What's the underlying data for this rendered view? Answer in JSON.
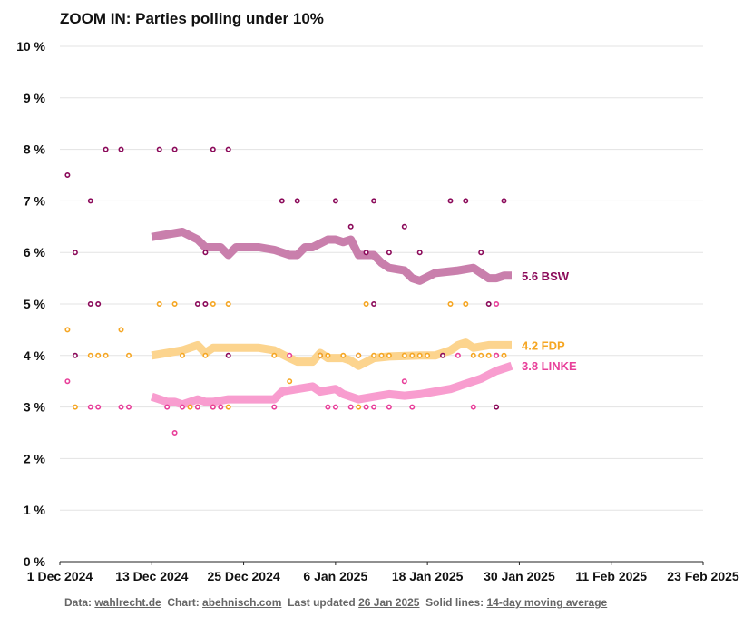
{
  "chart_data": {
    "type": "scatter",
    "title": "ZOOM IN: Parties polling under 10%",
    "xlabel": "",
    "ylabel": "",
    "xlim": [
      "2024-12-01",
      "2025-02-23"
    ],
    "ylim": [
      0,
      10
    ],
    "x_ticks": [
      "1 Dec 2024",
      "13 Dec 2024",
      "25 Dec 2024",
      "6 Jan 2025",
      "18 Jan 2025",
      "30 Jan 2025",
      "11 Feb 2025",
      "23 Feb 2025"
    ],
    "y_ticks": [
      "0 %",
      "1 %",
      "2 %",
      "3 %",
      "4 %",
      "5 %",
      "6 %",
      "7 %",
      "8 %",
      "9 %",
      "10 %"
    ],
    "grid": true,
    "series": [
      {
        "name": "BSW",
        "color": "#8b0a5a",
        "line_color": "#c97fac",
        "end_label": "5.6 BSW",
        "points": [
          [
            "2024-12-02",
            7.5
          ],
          [
            "2024-12-03",
            6.0
          ],
          [
            "2024-12-03",
            4.0
          ],
          [
            "2024-12-05",
            7.0
          ],
          [
            "2024-12-05",
            5.0
          ],
          [
            "2024-12-06",
            5.0
          ],
          [
            "2024-12-07",
            8.0
          ],
          [
            "2024-12-09",
            8.0
          ],
          [
            "2024-12-14",
            8.0
          ],
          [
            "2024-12-16",
            8.0
          ],
          [
            "2024-12-19",
            5.0
          ],
          [
            "2024-12-20",
            5.0
          ],
          [
            "2024-12-20",
            6.0
          ],
          [
            "2024-12-21",
            8.0
          ],
          [
            "2024-12-23",
            8.0
          ],
          [
            "2024-12-23",
            4.0
          ],
          [
            "2024-12-30",
            7.0
          ],
          [
            "2025-01-01",
            7.0
          ],
          [
            "2025-01-04",
            4.0
          ],
          [
            "2025-01-06",
            7.0
          ],
          [
            "2025-01-08",
            6.5
          ],
          [
            "2025-01-09",
            4.0
          ],
          [
            "2025-01-10",
            6.0
          ],
          [
            "2025-01-11",
            7.0
          ],
          [
            "2025-01-11",
            5.0
          ],
          [
            "2025-01-13",
            6.0
          ],
          [
            "2025-01-15",
            6.5
          ],
          [
            "2025-01-17",
            6.0
          ],
          [
            "2025-01-20",
            4.0
          ],
          [
            "2025-01-21",
            7.0
          ],
          [
            "2025-01-23",
            7.0
          ],
          [
            "2025-01-25",
            6.0
          ],
          [
            "2025-01-26",
            5.0
          ],
          [
            "2025-01-27",
            3.0
          ],
          [
            "2025-01-28",
            7.0
          ]
        ],
        "trend": [
          [
            "2024-12-13",
            6.3
          ],
          [
            "2024-12-15",
            6.35
          ],
          [
            "2024-12-17",
            6.4
          ],
          [
            "2024-12-19",
            6.25
          ],
          [
            "2024-12-20",
            6.1
          ],
          [
            "2024-12-22",
            6.1
          ],
          [
            "2024-12-23",
            5.95
          ],
          [
            "2024-12-24",
            6.1
          ],
          [
            "2024-12-27",
            6.1
          ],
          [
            "2024-12-29",
            6.05
          ],
          [
            "2024-12-31",
            5.95
          ],
          [
            "2025-01-01",
            5.95
          ],
          [
            "2025-01-02",
            6.1
          ],
          [
            "2025-01-03",
            6.1
          ],
          [
            "2025-01-05",
            6.25
          ],
          [
            "2025-01-06",
            6.25
          ],
          [
            "2025-01-07",
            6.2
          ],
          [
            "2025-01-08",
            6.25
          ],
          [
            "2025-01-09",
            5.95
          ],
          [
            "2025-01-11",
            5.95
          ],
          [
            "2025-01-12",
            5.8
          ],
          [
            "2025-01-13",
            5.7
          ],
          [
            "2025-01-15",
            5.65
          ],
          [
            "2025-01-16",
            5.5
          ],
          [
            "2025-01-17",
            5.45
          ],
          [
            "2025-01-19",
            5.6
          ],
          [
            "2025-01-22",
            5.65
          ],
          [
            "2025-01-24",
            5.7
          ],
          [
            "2025-01-25",
            5.6
          ],
          [
            "2025-01-26",
            5.5
          ],
          [
            "2025-01-27",
            5.5
          ],
          [
            "2025-01-28",
            5.55
          ],
          [
            "2025-01-29",
            5.55
          ]
        ]
      },
      {
        "name": "FDP",
        "color": "#f5a623",
        "line_color": "#fcd48e",
        "end_label": "4.2 FDP",
        "points": [
          [
            "2024-12-02",
            4.5
          ],
          [
            "2024-12-03",
            3.0
          ],
          [
            "2024-12-05",
            4.0
          ],
          [
            "2024-12-06",
            4.0
          ],
          [
            "2024-12-07",
            4.0
          ],
          [
            "2024-12-09",
            4.5
          ],
          [
            "2024-12-10",
            4.0
          ],
          [
            "2024-12-14",
            5.0
          ],
          [
            "2024-12-16",
            5.0
          ],
          [
            "2024-12-17",
            4.0
          ],
          [
            "2024-12-18",
            3.0
          ],
          [
            "2024-12-19",
            3.0
          ],
          [
            "2024-12-20",
            4.0
          ],
          [
            "2024-12-21",
            5.0
          ],
          [
            "2024-12-21",
            3.0
          ],
          [
            "2024-12-23",
            5.0
          ],
          [
            "2024-12-23",
            3.0
          ],
          [
            "2024-12-29",
            4.0
          ],
          [
            "2024-12-31",
            3.5
          ],
          [
            "2025-01-04",
            4.0
          ],
          [
            "2025-01-05",
            4.0
          ],
          [
            "2025-01-07",
            4.0
          ],
          [
            "2025-01-09",
            4.0
          ],
          [
            "2025-01-09",
            3.0
          ],
          [
            "2025-01-10",
            5.0
          ],
          [
            "2025-01-11",
            4.0
          ],
          [
            "2025-01-12",
            4.0
          ],
          [
            "2025-01-13",
            4.0
          ],
          [
            "2025-01-15",
            4.0
          ],
          [
            "2025-01-16",
            4.0
          ],
          [
            "2025-01-17",
            4.0
          ],
          [
            "2025-01-18",
            4.0
          ],
          [
            "2025-01-21",
            5.0
          ],
          [
            "2025-01-23",
            5.0
          ],
          [
            "2025-01-24",
            4.0
          ],
          [
            "2025-01-25",
            4.0
          ],
          [
            "2025-01-26",
            4.0
          ],
          [
            "2025-01-27",
            4.0
          ],
          [
            "2025-01-28",
            4.0
          ]
        ],
        "trend": [
          [
            "2024-12-13",
            4.0
          ],
          [
            "2024-12-15",
            4.05
          ],
          [
            "2024-12-17",
            4.1
          ],
          [
            "2024-12-19",
            4.2
          ],
          [
            "2024-12-20",
            4.05
          ],
          [
            "2024-12-21",
            4.15
          ],
          [
            "2024-12-23",
            4.15
          ],
          [
            "2024-12-27",
            4.15
          ],
          [
            "2024-12-29",
            4.1
          ],
          [
            "2024-12-31",
            3.95
          ],
          [
            "2025-01-01",
            3.88
          ],
          [
            "2025-01-03",
            3.88
          ],
          [
            "2025-01-04",
            4.05
          ],
          [
            "2025-01-05",
            3.95
          ],
          [
            "2025-01-07",
            3.95
          ],
          [
            "2025-01-08",
            3.9
          ],
          [
            "2025-01-09",
            3.8
          ],
          [
            "2025-01-11",
            3.95
          ],
          [
            "2025-01-13",
            3.98
          ],
          [
            "2025-01-17",
            4.0
          ],
          [
            "2025-01-19",
            4.0
          ],
          [
            "2025-01-21",
            4.1
          ],
          [
            "2025-01-22",
            4.2
          ],
          [
            "2025-01-23",
            4.25
          ],
          [
            "2025-01-24",
            4.15
          ],
          [
            "2025-01-26",
            4.2
          ],
          [
            "2025-01-29",
            4.2
          ]
        ]
      },
      {
        "name": "LINKE",
        "color": "#e8409a",
        "line_color": "#f89dcf",
        "end_label": "3.8 LINKE",
        "points": [
          [
            "2024-12-02",
            3.5
          ],
          [
            "2024-12-05",
            3.0
          ],
          [
            "2024-12-06",
            3.0
          ],
          [
            "2024-12-09",
            3.0
          ],
          [
            "2024-12-10",
            3.0
          ],
          [
            "2024-12-15",
            3.0
          ],
          [
            "2024-12-16",
            2.5
          ],
          [
            "2024-12-17",
            3.0
          ],
          [
            "2024-12-19",
            3.0
          ],
          [
            "2024-12-21",
            3.0
          ],
          [
            "2024-12-22",
            3.0
          ],
          [
            "2024-12-29",
            3.0
          ],
          [
            "2024-12-31",
            4.0
          ],
          [
            "2025-01-05",
            3.0
          ],
          [
            "2025-01-06",
            3.0
          ],
          [
            "2025-01-08",
            3.0
          ],
          [
            "2025-01-10",
            3.0
          ],
          [
            "2025-01-11",
            3.0
          ],
          [
            "2025-01-13",
            3.0
          ],
          [
            "2025-01-15",
            3.5
          ],
          [
            "2025-01-16",
            3.0
          ],
          [
            "2025-01-22",
            4.0
          ],
          [
            "2025-01-24",
            3.0
          ],
          [
            "2025-01-27",
            4.0
          ],
          [
            "2025-01-27",
            5.0
          ]
        ],
        "trend": [
          [
            "2024-12-13",
            3.2
          ],
          [
            "2024-12-15",
            3.1
          ],
          [
            "2024-12-16",
            3.1
          ],
          [
            "2024-12-17",
            3.05
          ],
          [
            "2024-12-19",
            3.15
          ],
          [
            "2024-12-20",
            3.1
          ],
          [
            "2024-12-21",
            3.1
          ],
          [
            "2024-12-23",
            3.15
          ],
          [
            "2024-12-27",
            3.15
          ],
          [
            "2024-12-29",
            3.15
          ],
          [
            "2024-12-30",
            3.3
          ],
          [
            "2025-01-01",
            3.35
          ],
          [
            "2025-01-03",
            3.4
          ],
          [
            "2025-01-04",
            3.3
          ],
          [
            "2025-01-06",
            3.35
          ],
          [
            "2025-01-07",
            3.25
          ],
          [
            "2025-01-08",
            3.2
          ],
          [
            "2025-01-09",
            3.15
          ],
          [
            "2025-01-11",
            3.2
          ],
          [
            "2025-01-13",
            3.25
          ],
          [
            "2025-01-15",
            3.22
          ],
          [
            "2025-01-17",
            3.25
          ],
          [
            "2025-01-19",
            3.3
          ],
          [
            "2025-01-21",
            3.35
          ],
          [
            "2025-01-23",
            3.45
          ],
          [
            "2025-01-25",
            3.55
          ],
          [
            "2025-01-27",
            3.7
          ],
          [
            "2025-01-29",
            3.8
          ]
        ]
      }
    ]
  },
  "footer": {
    "data_prefix": "Data: ",
    "data_source": "wahlrecht.de",
    "chart_prefix": "Chart: ",
    "chart_author": "abehnisch.com",
    "updated_prefix": "Last updated ",
    "updated_date": "26 Jan 2025",
    "solid_prefix": "Solid lines: ",
    "solid_desc": "14-day moving average"
  }
}
